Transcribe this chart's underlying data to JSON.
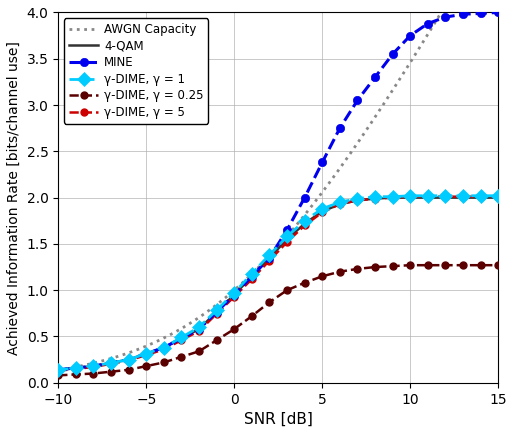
{
  "xlabel": "SNR [dB]",
  "ylabel": "Achieved Information Rate [bits/channel use]",
  "xlim": [
    -10,
    15
  ],
  "ylim": [
    0,
    4
  ],
  "yticks": [
    0,
    0.5,
    1.0,
    1.5,
    2.0,
    2.5,
    3.0,
    3.5,
    4.0
  ],
  "xticks": [
    -10,
    -5,
    0,
    5,
    10,
    15
  ],
  "background_color": "#ffffff",
  "grid_color": "#b0b0b0",
  "legend_labels": [
    "AWGN Capacity",
    "4-QAM",
    "MINE",
    "γ-DIME, γ = 1",
    "γ-DIME, γ = 0.25",
    "γ-DIME, γ = 5"
  ],
  "awgn_color": "#888888",
  "qam4_color": "#333333",
  "mine_color": "#0000ee",
  "gdime1_color": "#00ccff",
  "gdime025_color": "#5a0000",
  "gdime5_color": "#cc0000",
  "snr_fine_min": -10,
  "snr_fine_max": 15,
  "snr_fine_n": 500,
  "snr_marker_step": 1,
  "qam_max": 2.0,
  "gdime025_max": 1.27,
  "mine_diverge_snr": 2.5,
  "mine_diverge_scale": 0.28,
  "mine_diverge_exp": 1.5
}
